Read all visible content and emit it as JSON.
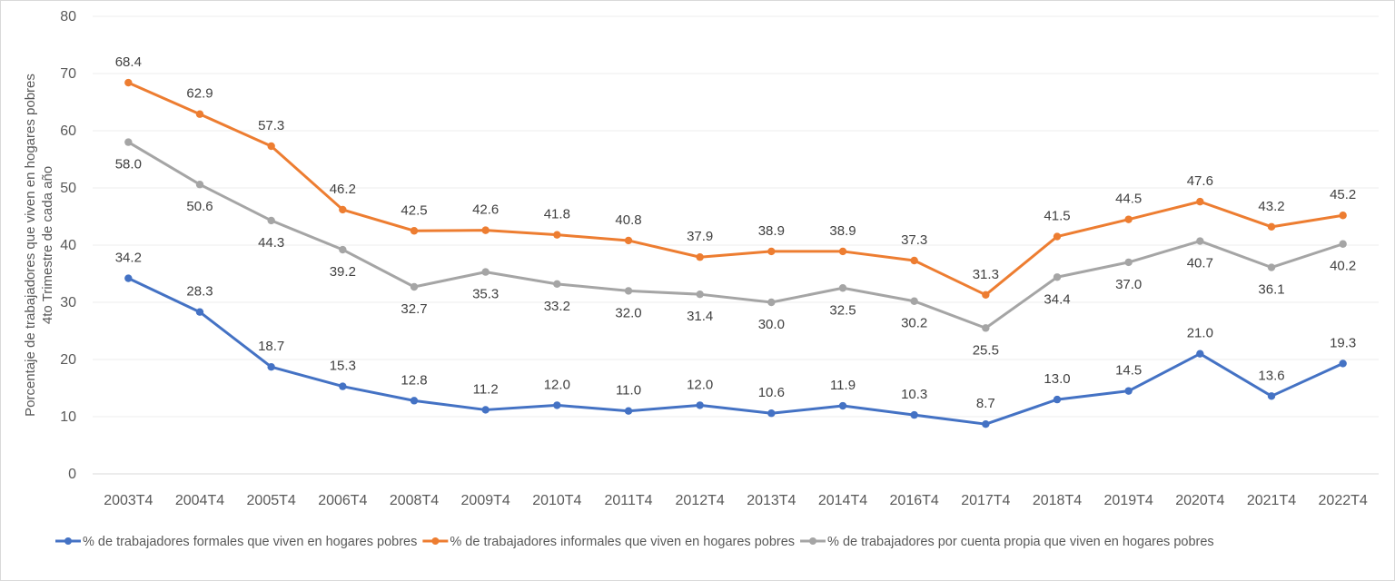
{
  "chart_data": {
    "type": "line",
    "ylabel_line1": "Porcentaje de trabajadores que viven en hogares pobres",
    "ylabel_line2": "4to Trimestre de cada año",
    "ylim": [
      0,
      80
    ],
    "yticks": [
      0,
      10,
      20,
      30,
      40,
      50,
      60,
      70,
      80
    ],
    "grid": true,
    "legend_position": "bottom",
    "categories": [
      "2003T4",
      "2004T4",
      "2005T4",
      "2006T4",
      "2008T4",
      "2009T4",
      "2010T4",
      "2011T4",
      "2012T4",
      "2013T4",
      "2014T4",
      "2016T4",
      "2017T4",
      "2018T4",
      "2019T4",
      "2020T4",
      "2021T4",
      "2022T4"
    ],
    "series": [
      {
        "name": "% de trabajadores formales que viven en hogares pobres",
        "color": "#4472C4",
        "values": [
          34.2,
          28.3,
          18.7,
          15.3,
          12.8,
          11.2,
          12.0,
          11.0,
          12.0,
          10.6,
          11.9,
          10.3,
          8.7,
          13.0,
          14.5,
          21.0,
          13.6,
          19.3
        ],
        "labels": [
          "34.2",
          "28.3",
          "18.7",
          "15.3",
          "12.8",
          "11.2",
          "12.0",
          "11.0",
          "12.0",
          "10.6",
          "11.9",
          "10.3",
          "8.7",
          "13.0",
          "14.5",
          "21.0",
          "13.6",
          "19.3"
        ]
      },
      {
        "name": "% de trabajadores informales que viven en hogares pobres",
        "color": "#ED7D31",
        "values": [
          68.4,
          62.9,
          57.3,
          46.2,
          42.5,
          42.6,
          41.8,
          40.8,
          37.9,
          38.9,
          38.9,
          37.3,
          31.3,
          41.5,
          44.5,
          47.6,
          43.2,
          45.2
        ],
        "labels": [
          "68.4",
          "62.9",
          "57.3",
          "46.2",
          "42.5",
          "42.6",
          "41.8",
          "40.8",
          "37.9",
          "38.9",
          "38.9",
          "37.3",
          "31.3",
          "41.5",
          "44.5",
          "47.6",
          "43.2",
          "45.2"
        ]
      },
      {
        "name": "% de trabajadores por cuenta propia que viven en hogares pobres",
        "color": "#A5A5A5",
        "values": [
          58.0,
          50.6,
          44.3,
          39.2,
          32.7,
          35.3,
          33.2,
          32.0,
          31.4,
          30.0,
          32.5,
          30.2,
          25.5,
          34.4,
          37.0,
          40.7,
          36.1,
          40.2
        ],
        "labels": [
          "58.0",
          "50.6",
          "44.3",
          "39.2",
          "32.7",
          "35.3",
          "33.2",
          "32.0",
          "31.4",
          "30.0",
          "32.5",
          "30.2",
          "25.5",
          "34.4",
          "37.0",
          "40.7",
          "36.1",
          "40.2"
        ]
      }
    ]
  }
}
